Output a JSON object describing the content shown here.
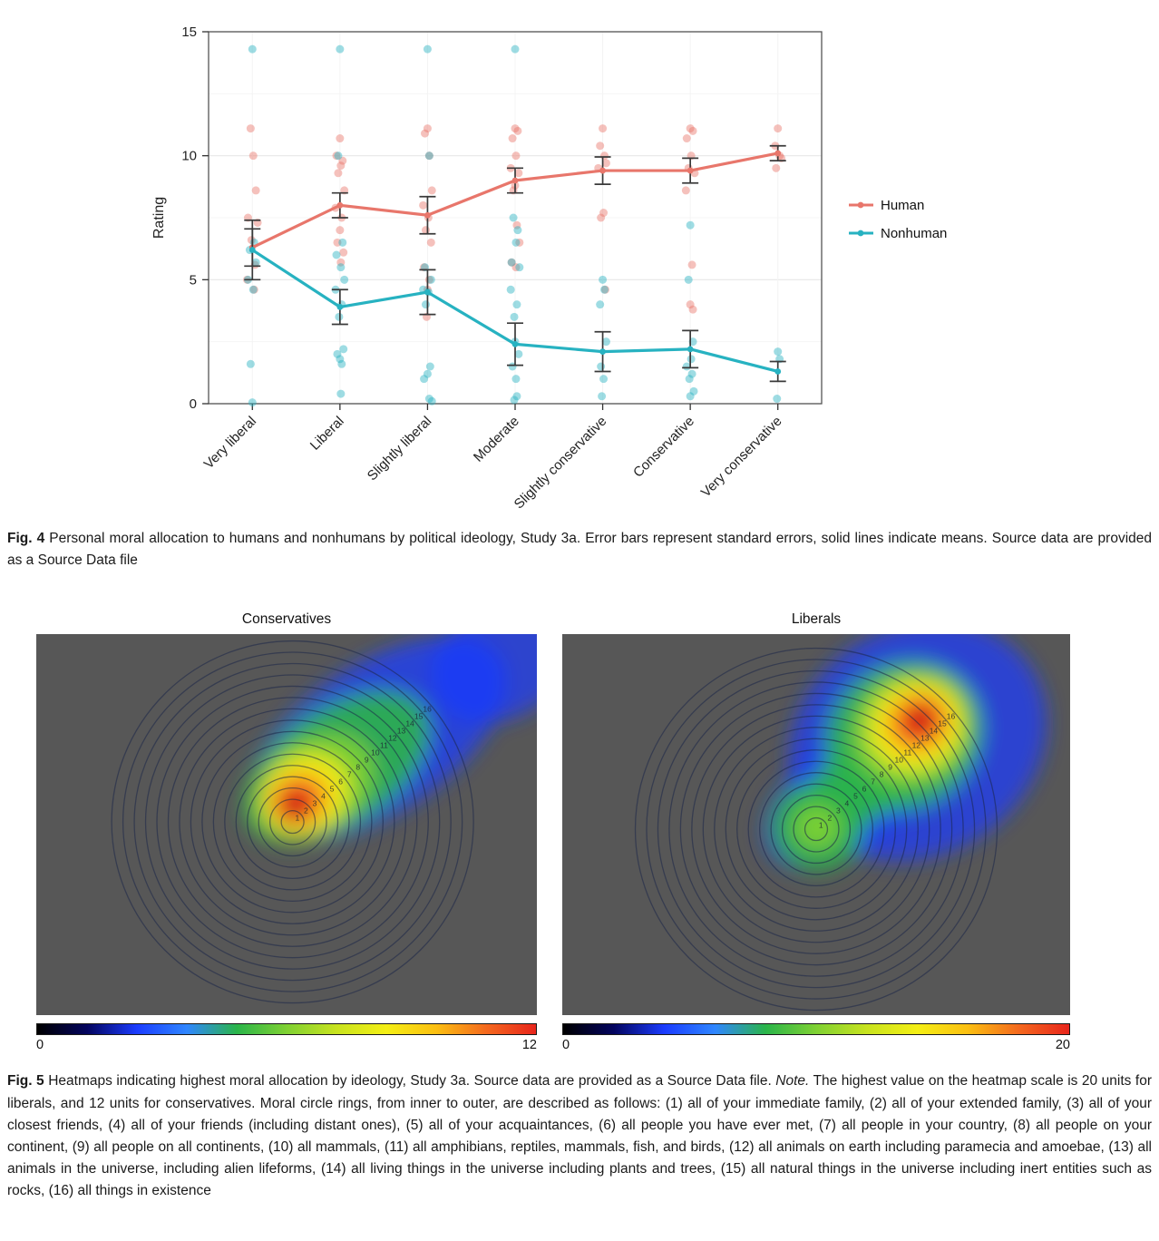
{
  "fig4_caption": {
    "label": "Fig. 4",
    "text": " Personal moral allocation to humans and nonhumans by political ideology, Study 3a. Error bars represent standard errors, solid lines indicate means. Source data are provided as a Source Data file"
  },
  "fig5_caption": {
    "label": "Fig. 5",
    "text_before_note": " Heatmaps indicating highest moral allocation by ideology, Study 3a. Source data are provided as a Source Data file. ",
    "note_label": "Note.",
    "text_after_note": " The highest value on the heatmap scale is 20 units for liberals, and 12 units for conservatives. Moral circle rings, from inner to outer, are described as follows: (1) all of your immediate family, (2) all of your extended family, (3) all of your closest friends, (4) all of your friends (including distant ones), (5) all of your acquaintances, (6) all people you have ever met, (7) all people in your country, (8) all people on your continent, (9) all people on all continents, (10) all mammals, (11) all amphibians, reptiles, mammals, fish, and birds, (12) all animals on earth including paramecia and amoebae, (13) all animals in the universe, including alien lifeforms, (14) all living things in the universe including plants and trees, (15) all natural things in the universe including inert entities such as rocks, (16) all things in existence"
  },
  "chart_data": [
    {
      "type": "line",
      "title": "",
      "xlabel": "",
      "ylabel": "Rating",
      "ylim": [
        0,
        15
      ],
      "yticks": [
        0,
        5,
        10,
        15
      ],
      "grid": true,
      "legend_position": "right",
      "errorbar_color": "#3a3a3a",
      "categories": [
        "Very liberal",
        "Liberal",
        "Slightly liberal",
        "Moderate",
        "Slightly conservative",
        "Conservative",
        "Very conservative"
      ],
      "series": [
        {
          "name": "Human",
          "color": "#e8766b",
          "means": [
            6.3,
            8.0,
            7.6,
            9.0,
            9.4,
            9.4,
            10.1
          ],
          "se": [
            0.75,
            0.5,
            0.75,
            0.5,
            0.55,
            0.5,
            0.3
          ],
          "points": [
            [
              0,
              -0.02,
              11.1
            ],
            [
              0,
              0.01,
              10.0
            ],
            [
              0,
              0.04,
              8.6
            ],
            [
              0,
              -0.05,
              7.5
            ],
            [
              0,
              0.06,
              7.3
            ],
            [
              0,
              -0.01,
              6.6
            ],
            [
              0,
              0.03,
              5.6
            ],
            [
              0,
              -0.06,
              5.0
            ],
            [
              0,
              0.02,
              4.6
            ],
            [
              1,
              0.0,
              10.7
            ],
            [
              1,
              -0.04,
              10.0
            ],
            [
              1,
              0.03,
              9.8
            ],
            [
              1,
              0.01,
              9.6
            ],
            [
              1,
              -0.02,
              9.3
            ],
            [
              1,
              0.05,
              8.6
            ],
            [
              1,
              -0.05,
              7.9
            ],
            [
              1,
              0.02,
              7.5
            ],
            [
              1,
              0.0,
              7.0
            ],
            [
              1,
              -0.03,
              6.5
            ],
            [
              1,
              0.04,
              6.1
            ],
            [
              1,
              0.01,
              5.7
            ],
            [
              2,
              0.0,
              11.1
            ],
            [
              2,
              -0.03,
              10.9
            ],
            [
              2,
              0.02,
              10.0
            ],
            [
              2,
              0.05,
              8.6
            ],
            [
              2,
              -0.05,
              8.0
            ],
            [
              2,
              0.01,
              7.5
            ],
            [
              2,
              -0.02,
              7.0
            ],
            [
              2,
              0.04,
              6.5
            ],
            [
              2,
              -0.04,
              5.5
            ],
            [
              2,
              0.02,
              5.0
            ],
            [
              2,
              0.0,
              4.6
            ],
            [
              2,
              -0.01,
              3.5
            ],
            [
              3,
              0.0,
              11.1
            ],
            [
              3,
              0.03,
              11.0
            ],
            [
              3,
              -0.03,
              10.7
            ],
            [
              3,
              0.01,
              10.0
            ],
            [
              3,
              -0.05,
              9.5
            ],
            [
              3,
              0.04,
              9.3
            ],
            [
              3,
              0.0,
              8.8
            ],
            [
              3,
              -0.02,
              8.6
            ],
            [
              3,
              0.02,
              7.2
            ],
            [
              3,
              0.05,
              6.5
            ],
            [
              3,
              -0.04,
              5.7
            ],
            [
              3,
              0.01,
              5.5
            ],
            [
              4,
              0.0,
              11.1
            ],
            [
              4,
              -0.03,
              10.4
            ],
            [
              4,
              0.02,
              10.0
            ],
            [
              4,
              0.04,
              9.7
            ],
            [
              4,
              -0.05,
              9.5
            ],
            [
              4,
              0.01,
              7.7
            ],
            [
              4,
              -0.02,
              7.5
            ],
            [
              4,
              0.03,
              4.6
            ],
            [
              5,
              0.0,
              11.1
            ],
            [
              5,
              0.03,
              11.0
            ],
            [
              5,
              -0.04,
              10.7
            ],
            [
              5,
              0.01,
              10.0
            ],
            [
              5,
              -0.02,
              9.5
            ],
            [
              5,
              0.05,
              9.3
            ],
            [
              5,
              -0.05,
              8.6
            ],
            [
              5,
              0.02,
              5.6
            ],
            [
              5,
              0.0,
              4.0
            ],
            [
              5,
              0.03,
              3.8
            ],
            [
              6,
              0.0,
              11.1
            ],
            [
              6,
              -0.03,
              10.4
            ],
            [
              6,
              0.02,
              10.0
            ],
            [
              6,
              0.04,
              9.9
            ],
            [
              6,
              -0.02,
              9.5
            ]
          ]
        },
        {
          "name": "Nonhuman",
          "color": "#27b2c1",
          "means": [
            6.2,
            3.9,
            4.5,
            2.4,
            2.1,
            2.2,
            1.3
          ],
          "se": [
            1.2,
            0.7,
            0.9,
            0.85,
            0.8,
            0.75,
            0.4
          ],
          "points": [
            [
              0,
              0.0,
              14.3
            ],
            [
              0,
              0.02,
              6.5
            ],
            [
              0,
              -0.03,
              6.2
            ],
            [
              0,
              0.04,
              5.7
            ],
            [
              0,
              -0.05,
              5.0
            ],
            [
              0,
              0.01,
              4.6
            ],
            [
              0,
              -0.02,
              1.6
            ],
            [
              0,
              0.0,
              0.05
            ],
            [
              1,
              0.0,
              14.3
            ],
            [
              1,
              -0.02,
              10.0
            ],
            [
              1,
              0.03,
              6.5
            ],
            [
              1,
              -0.04,
              6.0
            ],
            [
              1,
              0.01,
              5.5
            ],
            [
              1,
              0.05,
              5.0
            ],
            [
              1,
              -0.05,
              4.6
            ],
            [
              1,
              0.02,
              4.0
            ],
            [
              1,
              -0.01,
              3.5
            ],
            [
              1,
              0.04,
              2.2
            ],
            [
              1,
              -0.03,
              2.0
            ],
            [
              1,
              0.0,
              1.8
            ],
            [
              1,
              0.02,
              1.6
            ],
            [
              1,
              0.01,
              0.4
            ],
            [
              2,
              0.0,
              14.3
            ],
            [
              2,
              0.02,
              10.0
            ],
            [
              2,
              -0.03,
              5.5
            ],
            [
              2,
              0.04,
              5.0
            ],
            [
              2,
              -0.05,
              4.6
            ],
            [
              2,
              0.01,
              4.5
            ],
            [
              2,
              -0.02,
              4.0
            ],
            [
              2,
              0.03,
              1.5
            ],
            [
              2,
              0.0,
              1.2
            ],
            [
              2,
              -0.04,
              1.0
            ],
            [
              2,
              0.02,
              0.2
            ],
            [
              2,
              0.05,
              0.1
            ],
            [
              3,
              0.0,
              14.3
            ],
            [
              3,
              -0.02,
              7.5
            ],
            [
              3,
              0.03,
              7.0
            ],
            [
              3,
              0.01,
              6.5
            ],
            [
              3,
              -0.04,
              5.7
            ],
            [
              3,
              0.05,
              5.5
            ],
            [
              3,
              -0.05,
              4.6
            ],
            [
              3,
              0.02,
              4.0
            ],
            [
              3,
              -0.01,
              3.5
            ],
            [
              3,
              0.0,
              2.5
            ],
            [
              3,
              0.04,
              2.0
            ],
            [
              3,
              -0.03,
              1.5
            ],
            [
              3,
              0.01,
              1.0
            ],
            [
              3,
              0.02,
              0.3
            ],
            [
              3,
              -0.01,
              0.15
            ],
            [
              4,
              0.0,
              5.0
            ],
            [
              4,
              0.02,
              4.6
            ],
            [
              4,
              -0.03,
              4.0
            ],
            [
              4,
              0.04,
              2.5
            ],
            [
              4,
              -0.02,
              1.5
            ],
            [
              4,
              0.01,
              1.0
            ],
            [
              4,
              -0.01,
              0.3
            ],
            [
              5,
              0.0,
              7.2
            ],
            [
              5,
              -0.02,
              5.0
            ],
            [
              5,
              0.03,
              2.5
            ],
            [
              5,
              0.01,
              1.8
            ],
            [
              5,
              -0.04,
              1.5
            ],
            [
              5,
              0.02,
              1.2
            ],
            [
              5,
              -0.01,
              1.0
            ],
            [
              5,
              0.04,
              0.5
            ],
            [
              5,
              0.0,
              0.3
            ],
            [
              6,
              0.0,
              2.1
            ],
            [
              6,
              0.02,
              1.8
            ],
            [
              6,
              -0.01,
              0.2
            ]
          ]
        }
      ]
    },
    {
      "type": "heatmap",
      "title": "Conservatives",
      "scale_min": 0,
      "scale_max": 12,
      "rings": 16,
      "ring_labels": [
        "1",
        "2",
        "3",
        "4",
        "5",
        "6",
        "7",
        "8",
        "9",
        "10",
        "11",
        "12",
        "13",
        "14",
        "15",
        "16"
      ],
      "background": "#575757",
      "center": [
        0.512,
        0.493
      ],
      "ring_max_r": 0.475,
      "label_angle_deg": 40,
      "colorbar_colors": [
        "#000000",
        "#03045e",
        "#1b3cff",
        "#2f86ff",
        "#2ab54a",
        "#7fd133",
        "#c8e31f",
        "#f4ef15",
        "#fbbf12",
        "#f4691e",
        "#e8251c"
      ],
      "blobs": [
        {
          "cx": 0.93,
          "cy": 0.07,
          "rx": 0.15,
          "ry": 0.15,
          "rot": -30,
          "color": "#1b3cff",
          "opacity": 0.7
        },
        {
          "cx": 0.68,
          "cy": 0.275,
          "rx": 0.295,
          "ry": 0.195,
          "rot": -34,
          "color": "#1b3cff",
          "opacity": 0.75
        },
        {
          "cx": 0.6,
          "cy": 0.35,
          "rx": 0.21,
          "ry": 0.155,
          "rot": -34,
          "color": "#2ab54a",
          "opacity": 0.9
        },
        {
          "cx": 0.555,
          "cy": 0.4,
          "rx": 0.13,
          "ry": 0.12,
          "rot": -34,
          "color": "#7fd133",
          "opacity": 0.9
        },
        {
          "cx": 0.538,
          "cy": 0.42,
          "rx": 0.09,
          "ry": 0.1,
          "rot": -34,
          "color": "#f4ef15",
          "opacity": 0.93
        },
        {
          "cx": 0.528,
          "cy": 0.432,
          "rx": 0.065,
          "ry": 0.075,
          "rot": -34,
          "color": "#fbbf12",
          "opacity": 0.93
        },
        {
          "cx": 0.522,
          "cy": 0.44,
          "rx": 0.05,
          "ry": 0.058,
          "rot": -34,
          "color": "#f4691e",
          "opacity": 0.95
        },
        {
          "cx": 0.518,
          "cy": 0.446,
          "rx": 0.035,
          "ry": 0.042,
          "rot": -34,
          "color": "#e8251c",
          "opacity": 0.95
        },
        {
          "cx": 0.516,
          "cy": 0.449,
          "rx": 0.02,
          "ry": 0.026,
          "rot": -34,
          "color": "#b80d0d",
          "opacity": 0.95
        }
      ]
    },
    {
      "type": "heatmap",
      "title": "Liberals",
      "scale_min": 0,
      "scale_max": 20,
      "rings": 16,
      "ring_labels": [
        "1",
        "2",
        "3",
        "4",
        "5",
        "6",
        "7",
        "8",
        "9",
        "10",
        "11",
        "12",
        "13",
        "14",
        "15",
        "16"
      ],
      "background": "#575757",
      "center": [
        0.5,
        0.512
      ],
      "ring_max_r": 0.475,
      "label_angle_deg": 40,
      "colorbar_colors": [
        "#000000",
        "#03045e",
        "#1b3cff",
        "#2f86ff",
        "#2ab54a",
        "#7fd133",
        "#c8e31f",
        "#f4ef15",
        "#fbbf12",
        "#f4691e",
        "#e8251c"
      ],
      "blobs": [
        {
          "cx": 0.7,
          "cy": 0.28,
          "rx": 0.265,
          "ry": 0.3,
          "rot": -33,
          "color": "#1b3cff",
          "opacity": 0.72
        },
        {
          "cx": 0.575,
          "cy": 0.405,
          "rx": 0.215,
          "ry": 0.15,
          "rot": -38,
          "color": "#1b3cff",
          "opacity": 0.45
        },
        {
          "cx": 0.59,
          "cy": 0.39,
          "rx": 0.165,
          "ry": 0.1,
          "rot": -38,
          "color": "#2ab54a",
          "opacity": 0.85
        },
        {
          "cx": 0.503,
          "cy": 0.505,
          "rx": 0.09,
          "ry": 0.115,
          "rot": 0,
          "color": "#2ab54a",
          "opacity": 0.9
        },
        {
          "cx": 0.502,
          "cy": 0.507,
          "rx": 0.045,
          "ry": 0.058,
          "rot": 0,
          "color": "#7fd133",
          "opacity": 0.9
        },
        {
          "cx": 0.672,
          "cy": 0.268,
          "rx": 0.16,
          "ry": 0.19,
          "rot": -33,
          "color": "#2ab54a",
          "opacity": 0.9
        },
        {
          "cx": 0.688,
          "cy": 0.25,
          "rx": 0.12,
          "ry": 0.145,
          "rot": -33,
          "color": "#7fd133",
          "opacity": 0.92
        },
        {
          "cx": 0.696,
          "cy": 0.24,
          "rx": 0.095,
          "ry": 0.115,
          "rot": -33,
          "color": "#f4ef15",
          "opacity": 0.94
        },
        {
          "cx": 0.7,
          "cy": 0.234,
          "rx": 0.07,
          "ry": 0.085,
          "rot": -33,
          "color": "#fbbf12",
          "opacity": 0.95
        },
        {
          "cx": 0.702,
          "cy": 0.23,
          "rx": 0.052,
          "ry": 0.062,
          "rot": -33,
          "color": "#f4691e",
          "opacity": 0.95
        },
        {
          "cx": 0.704,
          "cy": 0.227,
          "rx": 0.036,
          "ry": 0.044,
          "rot": -33,
          "color": "#e8251c",
          "opacity": 0.95
        },
        {
          "cx": 0.705,
          "cy": 0.225,
          "rx": 0.02,
          "ry": 0.026,
          "rot": -33,
          "color": "#b80d0d",
          "opacity": 0.95
        }
      ]
    }
  ]
}
